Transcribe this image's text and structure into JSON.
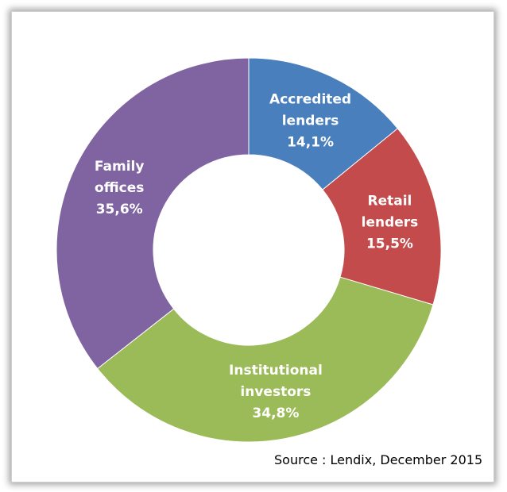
{
  "chart_data": {
    "type": "pie",
    "style": "donut",
    "categories": [
      "Accredited lenders",
      "Retail lenders",
      "Institutional investors",
      "Family offices"
    ],
    "values": [
      14.1,
      15.5,
      34.8,
      35.6
    ],
    "value_labels": [
      "14,1%",
      "15,5%",
      "34,8%",
      "35,6%"
    ],
    "label_lines": [
      [
        "Accredited",
        "lenders"
      ],
      [
        "Retail",
        "lenders"
      ],
      [
        "Institutional",
        "investors"
      ],
      [
        "Family",
        "offices"
      ]
    ],
    "colors": [
      "#4a7fbd",
      "#c44b4b",
      "#9bbb59",
      "#8064a2"
    ],
    "legend": "none"
  },
  "source": "Source : Lendix, December 2015"
}
